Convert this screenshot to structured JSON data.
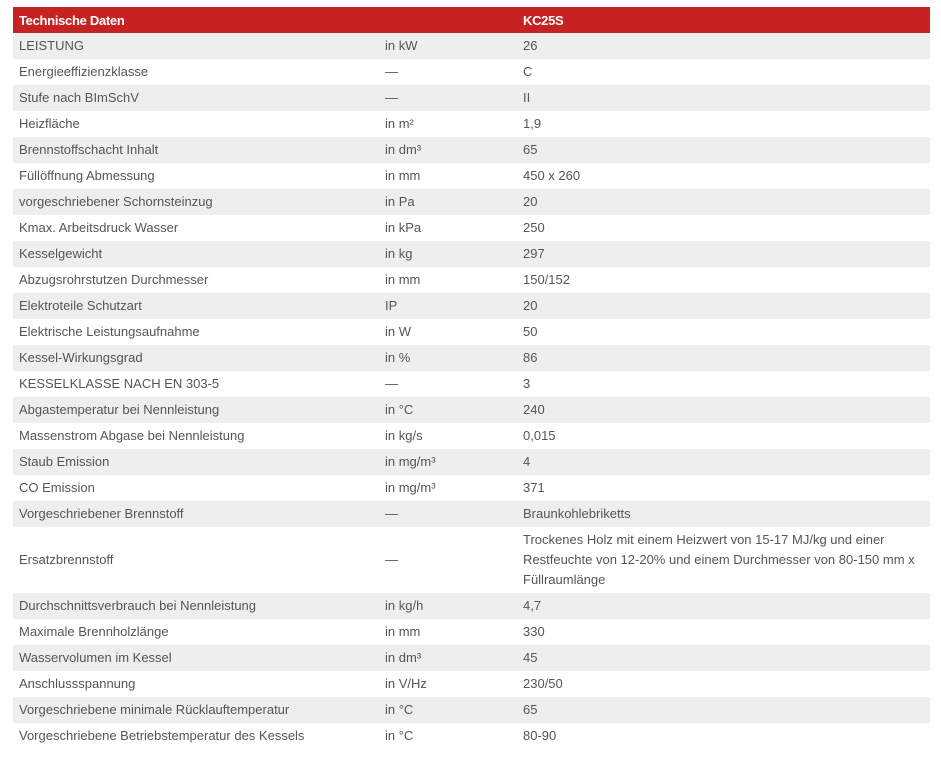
{
  "header": {
    "title": "Technische Daten",
    "unit": "",
    "model": "KC25S"
  },
  "rows": [
    {
      "label": "LEISTUNG",
      "unit": "in kW",
      "value": "26"
    },
    {
      "label": "Energieeffizienzklasse",
      "unit": "—",
      "value": "C"
    },
    {
      "label": "Stufe nach BImSchV",
      "unit": "—",
      "value": "II"
    },
    {
      "label": "Heizfläche",
      "unit": "in m²",
      "value": "1,9"
    },
    {
      "label": "Brennstoffschacht Inhalt",
      "unit": "in dm³",
      "value": "65"
    },
    {
      "label": "Füllöffnung Abmessung",
      "unit": "in mm",
      "value": "450 x 260"
    },
    {
      "label": "vorgeschriebener Schornsteinzug",
      "unit": "in Pa",
      "value": "20"
    },
    {
      "label": "Kmax. Arbeitsdruck Wasser",
      "unit": "in kPa",
      "value": "250"
    },
    {
      "label": "Kesselgewicht",
      "unit": "in kg",
      "value": "297"
    },
    {
      "label": "Abzugsrohrstutzen Durchmesser",
      "unit": "in mm",
      "value": "150/152"
    },
    {
      "label": "Elektroteile Schutzart",
      "unit": "IP",
      "value": "20"
    },
    {
      "label": "Elektrische Leistungsaufnahme",
      "unit": "in W",
      "value": "50"
    },
    {
      "label": "Kessel-Wirkungsgrad",
      "unit": "in %",
      "value": "86"
    },
    {
      "label": "KESSELKLASSE NACH EN 303-5",
      "unit": "—",
      "value": "3"
    },
    {
      "label": "Abgastemperatur bei Nennleistung",
      "unit": "in °C",
      "value": "240"
    },
    {
      "label": "Massenstrom Abgase bei Nennleistung",
      "unit": "in kg/s",
      "value": "0,015"
    },
    {
      "label": "Staub Emission",
      "unit": "in mg/m³",
      "value": "4"
    },
    {
      "label": "CO Emission",
      "unit": "in mg/m³",
      "value": "371"
    },
    {
      "label": "Vorgeschriebener Brennstoff",
      "unit": "—",
      "value": "Braunkohlebriketts"
    },
    {
      "label": "Ersatzbrennstoff",
      "unit": "—",
      "value": "Trockenes Holz mit einem Heizwert von 15-17 MJ/kg und einer Restfeuchte von 12-20% und einem Durchmesser von 80-150 mm x Füllraumlänge"
    },
    {
      "label": "Durchschnittsverbrauch bei Nennleistung",
      "unit": "in kg/h",
      "value": "4,7"
    },
    {
      "label": "Maximale Brennholzlänge",
      "unit": "in mm",
      "value": "330"
    },
    {
      "label": "Wasservolumen im Kessel",
      "unit": "in dm³",
      "value": "45"
    },
    {
      "label": "Anschlussspannung",
      "unit": "in V/Hz",
      "value": "230/50"
    },
    {
      "label": "Vorgeschriebene minimale Rücklauftemperatur",
      "unit": "in °C",
      "value": "65"
    },
    {
      "label": "Vorgeschriebene Betriebstemperatur des Kessels",
      "unit": "in °C",
      "value": "80-90"
    }
  ],
  "colors": {
    "header_bg": "#c62221",
    "stripe": "#eeeeee",
    "text": "#555555"
  }
}
